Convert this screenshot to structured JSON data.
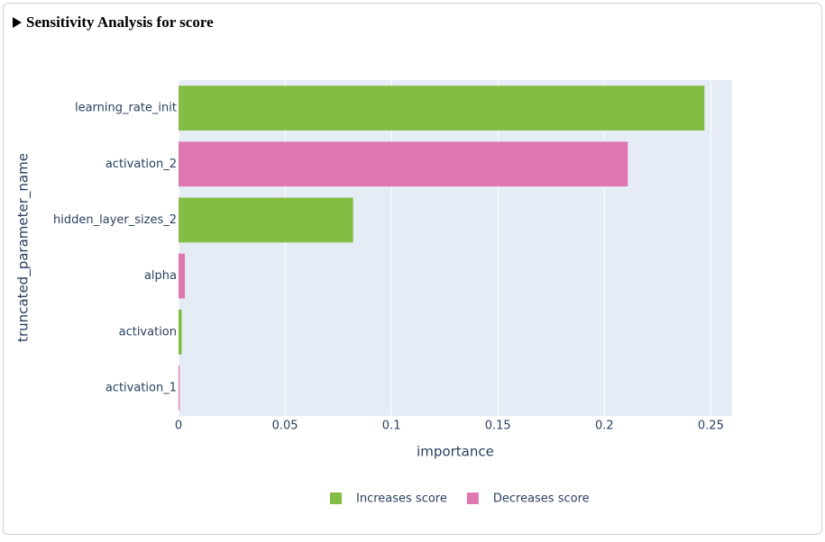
{
  "header": {
    "title": "Sensitivity Analysis for score"
  },
  "chart_data": {
    "type": "bar",
    "orientation": "horizontal",
    "categories": [
      "learning_rate_init",
      "activation_2",
      "hidden_layer_sizes_2",
      "alpha",
      "activation",
      "activation_1"
    ],
    "series": [
      {
        "name": "Increases score",
        "color": "#82bd44",
        "values": [
          0.247,
          null,
          0.082,
          null,
          0.0015,
          null
        ]
      },
      {
        "name": "Decreases score",
        "color": "#df77b0",
        "values": [
          null,
          0.211,
          null,
          0.003,
          null,
          0.0005
        ]
      }
    ],
    "xlabel": "importance",
    "ylabel": "truncated_parameter_name",
    "xlim": [
      0,
      0.26
    ],
    "xticks": [
      0,
      0.05,
      0.1,
      0.15,
      0.2,
      0.25
    ],
    "grid": true,
    "legend": "bottom"
  }
}
